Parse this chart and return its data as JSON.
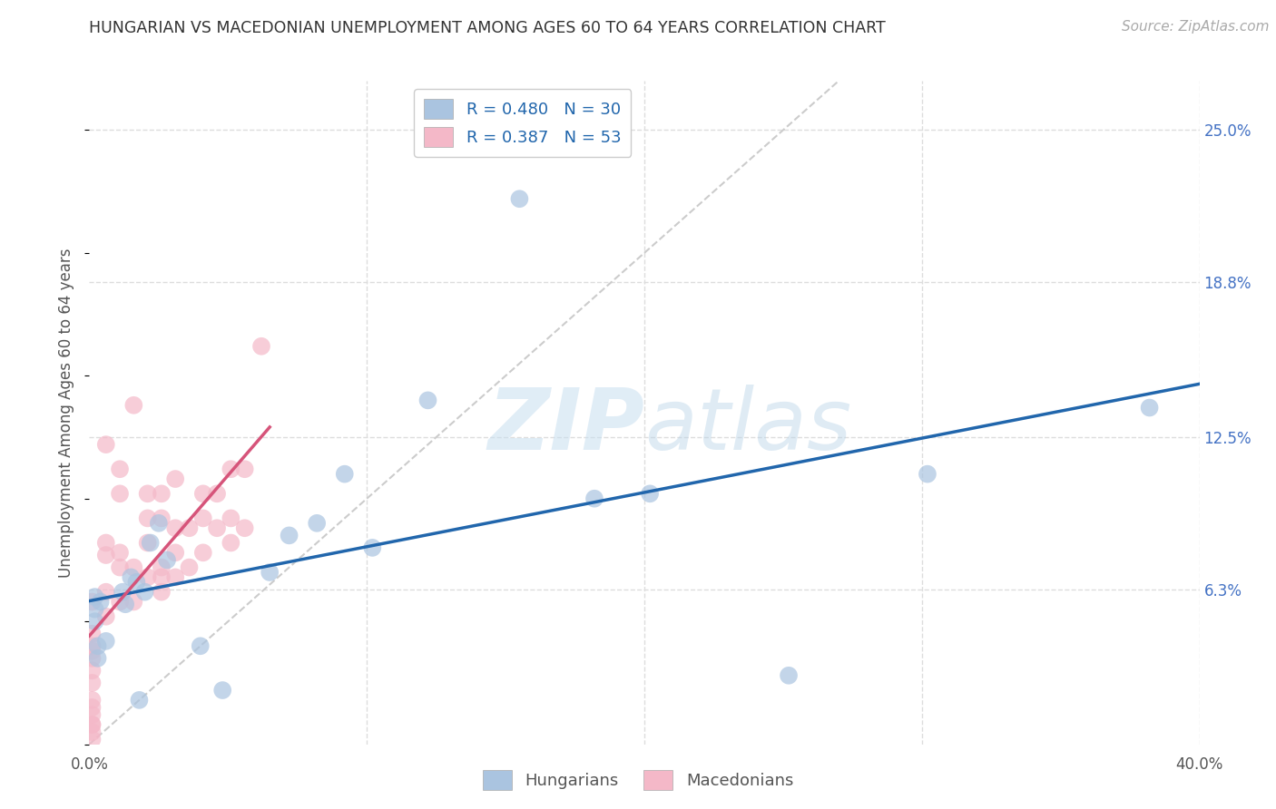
{
  "title": "HUNGARIAN VS MACEDONIAN UNEMPLOYMENT AMONG AGES 60 TO 64 YEARS CORRELATION CHART",
  "source": "Source: ZipAtlas.com",
  "ylabel": "Unemployment Among Ages 60 to 64 years",
  "xlim": [
    0.0,
    0.4
  ],
  "ylim": [
    0.0,
    0.27
  ],
  "ytick_positions": [
    0.063,
    0.125,
    0.188,
    0.25
  ],
  "ytick_labels": [
    "6.3%",
    "12.5%",
    "18.8%",
    "25.0%"
  ],
  "hungarian_R": 0.48,
  "hungarian_N": 30,
  "macedonian_R": 0.387,
  "macedonian_N": 53,
  "hungarian_color": "#aac4e0",
  "macedonian_color": "#f4b8c8",
  "hungarian_line_color": "#2166ac",
  "macedonian_line_color": "#d6547a",
  "diagonal_color": "#cccccc",
  "background_color": "#ffffff",
  "grid_color": "#dddddd",
  "legend_text_color": "#2166ac",
  "hungarian_x": [
    0.002,
    0.002,
    0.002,
    0.003,
    0.003,
    0.004,
    0.006,
    0.012,
    0.013,
    0.015,
    0.017,
    0.018,
    0.02,
    0.022,
    0.025,
    0.028,
    0.04,
    0.048,
    0.065,
    0.072,
    0.082,
    0.092,
    0.102,
    0.122,
    0.155,
    0.182,
    0.202,
    0.252,
    0.302,
    0.382
  ],
  "hungarian_y": [
    0.06,
    0.055,
    0.05,
    0.04,
    0.035,
    0.058,
    0.042,
    0.062,
    0.057,
    0.068,
    0.066,
    0.018,
    0.062,
    0.082,
    0.09,
    0.075,
    0.04,
    0.022,
    0.07,
    0.085,
    0.09,
    0.11,
    0.08,
    0.14,
    0.222,
    0.1,
    0.102,
    0.028,
    0.11,
    0.137
  ],
  "macedonian_x": [
    0.001,
    0.001,
    0.001,
    0.001,
    0.001,
    0.001,
    0.001,
    0.001,
    0.001,
    0.001,
    0.001,
    0.001,
    0.001,
    0.001,
    0.006,
    0.006,
    0.006,
    0.006,
    0.006,
    0.011,
    0.011,
    0.011,
    0.011,
    0.011,
    0.016,
    0.016,
    0.016,
    0.021,
    0.021,
    0.021,
    0.021,
    0.026,
    0.026,
    0.026,
    0.026,
    0.026,
    0.031,
    0.031,
    0.031,
    0.031,
    0.036,
    0.036,
    0.041,
    0.041,
    0.041,
    0.046,
    0.046,
    0.051,
    0.051,
    0.051,
    0.056,
    0.056,
    0.062
  ],
  "macedonian_y": [
    0.04,
    0.035,
    0.03,
    0.025,
    0.018,
    0.012,
    0.008,
    0.045,
    0.038,
    0.015,
    0.008,
    0.005,
    0.002,
    0.058,
    0.052,
    0.062,
    0.077,
    0.082,
    0.122,
    0.058,
    0.072,
    0.078,
    0.102,
    0.112,
    0.058,
    0.072,
    0.138,
    0.068,
    0.082,
    0.092,
    0.102,
    0.062,
    0.068,
    0.072,
    0.092,
    0.102,
    0.068,
    0.078,
    0.088,
    0.108,
    0.072,
    0.088,
    0.078,
    0.092,
    0.102,
    0.088,
    0.102,
    0.082,
    0.092,
    0.112,
    0.088,
    0.112,
    0.162
  ]
}
